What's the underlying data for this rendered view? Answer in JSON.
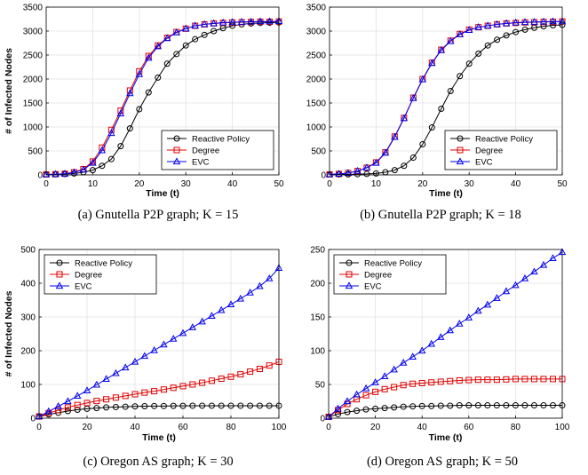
{
  "figure": {
    "legend_labels": [
      "Reactive Policy",
      "Degree",
      "EVC"
    ]
  },
  "colors": {
    "reactive": "#000000",
    "degree": "#e00000",
    "evc": "#0000ee",
    "grid": "#e2e2e2"
  },
  "chart_data": [
    {
      "id": "a",
      "type": "line",
      "caption": "(a)  Gnutella P2P graph; K = 15",
      "xlabel": "Time (t)",
      "ylabel": "# of Infected Nodes",
      "xlim": [
        0,
        50
      ],
      "ylim": [
        0,
        3500
      ],
      "xticks": [
        0,
        10,
        20,
        30,
        40,
        50
      ],
      "yticks": [
        0,
        500,
        1000,
        1500,
        2000,
        2500,
        3000,
        3500
      ],
      "grid": true,
      "legend": "bottom-right",
      "x": [
        0,
        2,
        4,
        6,
        8,
        10,
        12,
        14,
        16,
        18,
        20,
        22,
        24,
        26,
        28,
        30,
        32,
        34,
        36,
        38,
        40,
        42,
        44,
        46,
        48,
        50
      ],
      "series": [
        {
          "name": "Reactive Policy",
          "marker": "circle",
          "values": [
            10,
            12,
            18,
            30,
            55,
            100,
            190,
            330,
            600,
            970,
            1370,
            1720,
            2030,
            2320,
            2520,
            2700,
            2830,
            2920,
            3000,
            3060,
            3110,
            3140,
            3160,
            3170,
            3175,
            3180
          ]
        },
        {
          "name": "Degree",
          "marker": "square",
          "values": [
            10,
            15,
            25,
            55,
            120,
            280,
            570,
            940,
            1340,
            1760,
            2160,
            2480,
            2700,
            2860,
            2980,
            3050,
            3110,
            3140,
            3160,
            3170,
            3180,
            3185,
            3190,
            3195,
            3195,
            3200
          ]
        },
        {
          "name": "EVC",
          "marker": "triangle",
          "values": [
            10,
            14,
            22,
            50,
            110,
            250,
            510,
            870,
            1280,
            1700,
            2100,
            2440,
            2680,
            2850,
            2970,
            3050,
            3110,
            3140,
            3160,
            3175,
            3185,
            3190,
            3195,
            3200,
            3200,
            3205
          ]
        }
      ]
    },
    {
      "id": "b",
      "type": "line",
      "caption": "(b)  Gnutella P2P graph; K = 18",
      "xlabel": "Time (t)",
      "ylabel": "",
      "xlim": [
        0,
        50
      ],
      "ylim": [
        0,
        3500
      ],
      "xticks": [
        0,
        10,
        20,
        30,
        40,
        50
      ],
      "yticks": [
        0,
        500,
        1000,
        1500,
        2000,
        2500,
        3000,
        3500
      ],
      "grid": true,
      "legend": "bottom-right",
      "x": [
        0,
        2,
        4,
        6,
        8,
        10,
        12,
        14,
        16,
        18,
        20,
        22,
        24,
        26,
        28,
        30,
        32,
        34,
        36,
        38,
        40,
        42,
        44,
        46,
        48,
        50
      ],
      "series": [
        {
          "name": "Reactive Policy",
          "marker": "circle",
          "values": [
            10,
            10,
            12,
            15,
            20,
            30,
            55,
            100,
            190,
            360,
            640,
            990,
            1380,
            1750,
            2060,
            2320,
            2530,
            2700,
            2820,
            2910,
            2980,
            3030,
            3070,
            3100,
            3120,
            3130
          ]
        },
        {
          "name": "Degree",
          "marker": "square",
          "values": [
            10,
            20,
            40,
            80,
            150,
            260,
            470,
            800,
            1190,
            1610,
            2000,
            2340,
            2610,
            2800,
            2940,
            3030,
            3080,
            3110,
            3140,
            3160,
            3170,
            3180,
            3185,
            3190,
            3195,
            3200
          ]
        },
        {
          "name": "EVC",
          "marker": "triangle",
          "values": [
            10,
            20,
            40,
            80,
            150,
            250,
            460,
            790,
            1180,
            1600,
            1990,
            2330,
            2600,
            2790,
            2930,
            3020,
            3080,
            3110,
            3140,
            3160,
            3175,
            3185,
            3190,
            3195,
            3200,
            3200
          ]
        }
      ]
    },
    {
      "id": "c",
      "type": "line",
      "caption": "(c)  Oregon AS graph; K = 30",
      "xlabel": "Time (t)",
      "ylabel": "# of Infected Nodes",
      "xlim": [
        0,
        100
      ],
      "ylim": [
        0,
        500
      ],
      "xticks": [
        0,
        20,
        40,
        60,
        80,
        100
      ],
      "yticks": [
        0,
        100,
        200,
        300,
        400,
        500
      ],
      "grid": true,
      "legend": "top-left",
      "x": [
        0,
        4,
        8,
        12,
        16,
        20,
        24,
        28,
        32,
        36,
        40,
        44,
        48,
        52,
        56,
        60,
        64,
        68,
        72,
        76,
        80,
        84,
        88,
        92,
        96,
        100
      ],
      "series": [
        {
          "name": "Reactive Policy",
          "marker": "circle",
          "values": [
            5,
            11,
            16,
            21,
            25,
            28,
            30,
            32,
            33,
            34,
            35,
            35.5,
            36,
            36,
            36.5,
            36.5,
            37,
            37,
            37,
            37,
            37,
            37,
            37,
            37,
            37,
            37
          ]
        },
        {
          "name": "Degree",
          "marker": "square",
          "values": [
            5,
            15,
            24,
            32,
            39,
            45,
            51,
            56,
            61,
            66,
            71,
            76,
            80,
            85,
            90,
            95,
            100,
            105,
            111,
            117,
            123,
            130,
            138,
            146,
            156,
            167
          ]
        },
        {
          "name": "EVC",
          "marker": "triangle",
          "values": [
            5,
            20,
            35,
            50,
            66,
            82,
            99,
            116,
            133,
            150,
            167,
            184,
            201,
            218,
            235,
            252,
            269,
            286,
            303,
            320,
            337,
            354,
            372,
            391,
            414,
            445
          ]
        }
      ]
    },
    {
      "id": "d",
      "type": "line",
      "caption": "(d)  Oregon AS graph; K = 50",
      "xlabel": "Time (t)",
      "ylabel": "",
      "xlim": [
        0,
        100
      ],
      "ylim": [
        0,
        250
      ],
      "xticks": [
        0,
        20,
        40,
        60,
        80,
        100
      ],
      "yticks": [
        0,
        50,
        100,
        150,
        200,
        250
      ],
      "grid": true,
      "legend": "top-left",
      "x": [
        0,
        4,
        8,
        12,
        16,
        20,
        24,
        28,
        32,
        36,
        40,
        44,
        48,
        52,
        56,
        60,
        64,
        68,
        72,
        76,
        80,
        84,
        88,
        92,
        96,
        100
      ],
      "series": [
        {
          "name": "Reactive Policy",
          "marker": "circle",
          "values": [
            2,
            6,
            9,
            11,
            13,
            14,
            15,
            16,
            17,
            17.5,
            18,
            18,
            18.5,
            18.5,
            19,
            19,
            19,
            19,
            19,
            19,
            19,
            19,
            19,
            19,
            19,
            19
          ]
        },
        {
          "name": "Degree",
          "marker": "square",
          "values": [
            2,
            12,
            21,
            28,
            34,
            39,
            43,
            46,
            49,
            51,
            52,
            53,
            54,
            55,
            56,
            56.5,
            57,
            57,
            57,
            57.5,
            58,
            58,
            58,
            58,
            58,
            58
          ]
        },
        {
          "name": "EVC",
          "marker": "triangle",
          "values": [
            2,
            14,
            25,
            35,
            44,
            53,
            62,
            72,
            82,
            91,
            100,
            110,
            120,
            130,
            140,
            149,
            159,
            168,
            178,
            188,
            197,
            207,
            217,
            227,
            237,
            246
          ]
        }
      ]
    }
  ]
}
